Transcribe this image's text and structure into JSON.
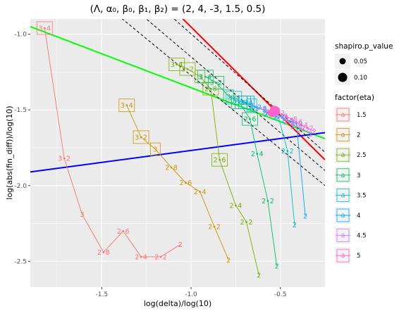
{
  "chart_data": {
    "type": "scatter",
    "title": "(Λ, α₀, β₀, β₁, β₂) = (2, 4, -3, 1.5, 0.5)",
    "xlabel": "log(delta)/log(10)",
    "ylabel": "log(abs(fin_diff))/log(10)",
    "xlim": [
      -1.9,
      -0.25
    ],
    "ylim": [
      -2.67,
      -0.9
    ],
    "x_ticks": [
      -1.5,
      -1.0,
      -0.5
    ],
    "x_tick_labels": [
      "-1.5",
      "-1.0",
      "-0.5"
    ],
    "y_ticks": [
      -1.0,
      -1.5,
      -2.0,
      -2.5
    ],
    "y_tick_labels": [
      "-1.0",
      "-1.5",
      "-2.0",
      "-2.5"
    ],
    "grid": true,
    "legend_placement": "right",
    "legend_size": {
      "title": "shapiro.p_value",
      "entries": [
        {
          "label": "0.05",
          "r": 4.5
        },
        {
          "label": "0.10",
          "r": 6.5
        }
      ]
    },
    "legend_color": {
      "title": "factor(eta)",
      "entries": [
        {
          "label": "1.5",
          "color": "#F8766D"
        },
        {
          "label": "2",
          "color": "#CD9600"
        },
        {
          "label": "2.5",
          "color": "#7CAE00"
        },
        {
          "label": "3",
          "color": "#00BE67"
        },
        {
          "label": "3.5",
          "color": "#00BFC4"
        },
        {
          "label": "4",
          "color": "#00A9FF"
        },
        {
          "label": "4.5",
          "color": "#C77CFF"
        },
        {
          "label": "5",
          "color": "#FF61CC"
        }
      ]
    },
    "series": [
      {
        "name": "1.5",
        "color": "#F8766D",
        "points": [
          {
            "x": -1.82,
            "y": -0.96,
            "label": "3•4",
            "boxed": true
          },
          {
            "x": -1.71,
            "y": -1.82,
            "label": "3•2"
          },
          {
            "x": -1.61,
            "y": -2.19,
            "label": "3"
          },
          {
            "x": -1.49,
            "y": -2.44,
            "label": "2•8"
          },
          {
            "x": -1.38,
            "y": -2.3,
            "label": "2•6"
          },
          {
            "x": -1.28,
            "y": -2.47,
            "label": "2•4"
          },
          {
            "x": -1.17,
            "y": -2.47,
            "label": "2•2"
          },
          {
            "x": -1.06,
            "y": -2.39,
            "label": "2"
          }
        ]
      },
      {
        "name": "2",
        "color": "#CD9600",
        "points": [
          {
            "x": -1.36,
            "y": -1.47,
            "label": "3•4",
            "boxed": true
          },
          {
            "x": -1.28,
            "y": -1.68,
            "label": "3•2",
            "boxed": true
          },
          {
            "x": -1.2,
            "y": -1.76,
            "label": "3",
            "boxed": true
          },
          {
            "x": -1.11,
            "y": -1.88,
            "label": "2•8"
          },
          {
            "x": -1.03,
            "y": -1.98,
            "label": "2•6"
          },
          {
            "x": -0.95,
            "y": -2.04,
            "label": "2•4"
          },
          {
            "x": -0.87,
            "y": -2.27,
            "label": "2•2"
          },
          {
            "x": -0.79,
            "y": -2.49,
            "label": "2"
          }
        ]
      },
      {
        "name": "2.5",
        "color": "#7CAE00",
        "points": [
          {
            "x": -1.08,
            "y": -1.2,
            "label": "3•4",
            "boxed": true
          },
          {
            "x": -1.02,
            "y": -1.23,
            "label": "3•2",
            "boxed": true
          },
          {
            "x": -0.95,
            "y": -1.28,
            "label": "3",
            "boxed": true
          },
          {
            "x": -0.89,
            "y": -1.36,
            "label": "2•8",
            "boxed": true
          },
          {
            "x": -0.84,
            "y": -1.83,
            "label": "2•6",
            "boxed": true
          },
          {
            "x": -0.75,
            "y": -2.13,
            "label": "2•4"
          },
          {
            "x": -0.69,
            "y": -2.24,
            "label": "2•2"
          },
          {
            "x": -0.62,
            "y": -2.59,
            "label": "2"
          }
        ]
      },
      {
        "name": "3",
        "color": "#00BE67",
        "points": [
          {
            "x": -0.92,
            "y": -1.28,
            "label": "3•4",
            "boxed": true
          },
          {
            "x": -0.86,
            "y": -1.32,
            "label": "3•2",
            "boxed": true
          },
          {
            "x": -0.79,
            "y": -1.41,
            "label": "3",
            "boxed": true
          },
          {
            "x": -0.73,
            "y": -1.45,
            "label": "2•8",
            "boxed": true
          },
          {
            "x": -0.67,
            "y": -1.56,
            "label": "2•6",
            "boxed": true
          },
          {
            "x": -0.63,
            "y": -1.79,
            "label": "2•4"
          },
          {
            "x": -0.57,
            "y": -2.1,
            "label": "2•2"
          },
          {
            "x": -0.52,
            "y": -2.53,
            "label": "2"
          }
        ]
      },
      {
        "name": "3.5",
        "color": "#00BFC4",
        "points": [
          {
            "x": -0.76,
            "y": -1.42,
            "label": "3•4",
            "boxed": true
          },
          {
            "x": -0.71,
            "y": -1.45,
            "label": "3•2",
            "boxed": true
          },
          {
            "x": -0.66,
            "y": -1.47,
            "label": "3",
            "boxed": true
          },
          {
            "x": -0.61,
            "y": -1.49,
            "label": "2•8"
          },
          {
            "x": -0.56,
            "y": -1.53,
            "label": "2•6"
          },
          {
            "x": -0.51,
            "y": -1.55,
            "label": "2•4"
          },
          {
            "x": -0.46,
            "y": -1.77,
            "label": "2•2"
          },
          {
            "x": -0.42,
            "y": -2.26,
            "label": "2"
          }
        ]
      },
      {
        "name": "4",
        "color": "#00A9FF",
        "points": [
          {
            "x": -0.69,
            "y": -1.45,
            "label": "3•4",
            "boxed": true
          },
          {
            "x": -0.64,
            "y": -1.48,
            "label": "3•2"
          },
          {
            "x": -0.59,
            "y": -1.5,
            "label": "3"
          },
          {
            "x": -0.55,
            "y": -1.52,
            "label": "2•8"
          },
          {
            "x": -0.5,
            "y": -1.54,
            "label": "2•6"
          },
          {
            "x": -0.46,
            "y": -1.57,
            "label": "2•4"
          },
          {
            "x": -0.41,
            "y": -1.59,
            "label": "2•2"
          },
          {
            "x": -0.36,
            "y": -2.2,
            "label": "2"
          }
        ]
      },
      {
        "name": "4.5",
        "color": "#C77CFF",
        "points": [
          {
            "x": -0.61,
            "y": -1.49,
            "label": "3•4"
          },
          {
            "x": -0.57,
            "y": -1.51,
            "label": "3•2"
          },
          {
            "x": -0.53,
            "y": -1.53,
            "label": "3"
          },
          {
            "x": -0.49,
            "y": -1.55,
            "label": "2•8"
          },
          {
            "x": -0.45,
            "y": -1.58,
            "label": "2•6"
          },
          {
            "x": -0.41,
            "y": -1.61,
            "label": "2•4"
          },
          {
            "x": -0.37,
            "y": -1.63,
            "label": "2•2"
          },
          {
            "x": -0.33,
            "y": -1.66,
            "label": "2"
          }
        ]
      },
      {
        "name": "5",
        "color": "#FF61CC",
        "points": [
          {
            "x": -0.55,
            "y": -1.51,
            "label": "3•4"
          },
          {
            "x": -0.51,
            "y": -1.52,
            "label": "3•2"
          },
          {
            "x": -0.47,
            "y": -1.54,
            "label": "3"
          },
          {
            "x": -0.44,
            "y": -1.56,
            "label": "2•8"
          },
          {
            "x": -0.41,
            "y": -1.58,
            "label": "2•6"
          },
          {
            "x": -0.38,
            "y": -1.6,
            "label": "2•4"
          },
          {
            "x": -0.35,
            "y": -1.62,
            "label": "2•2"
          },
          {
            "x": -0.31,
            "y": -1.64,
            "label": "2"
          }
        ]
      }
    ],
    "size_points": [
      {
        "x": -0.535,
        "y": -1.5,
        "size_value": 0.1,
        "color": "#FF61CC"
      },
      {
        "x": -0.545,
        "y": -1.52,
        "size_value": 0.1,
        "color": "#FF61CC"
      },
      {
        "x": -0.525,
        "y": -1.505,
        "size_value": 0.1,
        "color": "#FF61CC"
      }
    ],
    "reference_lines": [
      {
        "color": "#00FF00",
        "style": "solid",
        "x": [
          -1.9,
          -0.25
        ],
        "y": [
          -0.95,
          -1.69
        ]
      },
      {
        "color": "#FF0000",
        "style": "solid",
        "x": [
          -1.9,
          -0.25
        ],
        "y": [
          0.1,
          -1.83
        ]
      },
      {
        "color": "#0000FF",
        "style": "solid",
        "x": [
          -1.9,
          -0.25
        ],
        "y": [
          -1.91,
          -1.65
        ]
      },
      {
        "color": "#000000",
        "style": "dashed",
        "x": [
          -1.9,
          -0.25
        ],
        "y": [
          -0.4,
          -2.0
        ]
      },
      {
        "color": "#000000",
        "style": "dashed",
        "x": [
          -1.9,
          -0.25
        ],
        "y": [
          -0.25,
          -1.9
        ]
      },
      {
        "color": "#000000",
        "style": "dashed",
        "x": [
          -1.9,
          -0.25
        ],
        "y": [
          -0.06,
          -1.78
        ]
      }
    ]
  }
}
